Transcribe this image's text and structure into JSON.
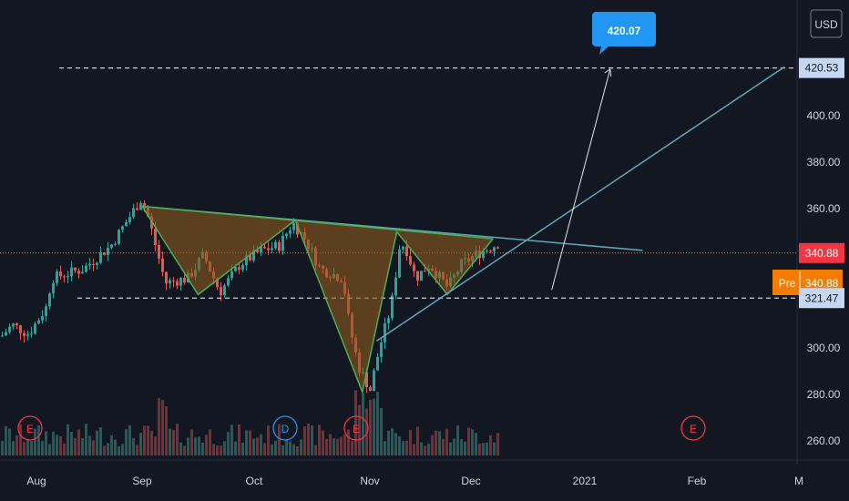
{
  "chart_data": {
    "type": "candlestick",
    "currency": "USD",
    "x_ticks": [
      "Aug",
      "Sep",
      "Oct",
      "Nov",
      "Dec",
      "2021",
      "Feb",
      "M"
    ],
    "y_ticks": [
      "260.00",
      "280.00",
      "300.00",
      "320.00",
      "340.00",
      "360.00",
      "380.00",
      "400.00"
    ],
    "ylim": [
      255,
      428
    ],
    "target_label": "420.07",
    "price_labels": {
      "target": "420.53",
      "last": "340.88",
      "pre_tag": "Pre",
      "pre_value": "340.88",
      "support": "321.47"
    },
    "levels": {
      "target": 420.53,
      "last": 340.88,
      "support": 321.47
    },
    "earnings_markers": [
      "E",
      "D",
      "E",
      "E"
    ],
    "pattern_points": [
      {
        "date": "2020-09-01",
        "value": 361
      },
      {
        "date": "2020-09-16",
        "value": 323
      },
      {
        "date": "2020-10-12",
        "value": 355
      },
      {
        "date": "2020-10-30",
        "value": 281
      },
      {
        "date": "2020-11-09",
        "value": 350
      },
      {
        "date": "2020-11-24",
        "value": 323
      },
      {
        "date": "2020-12-07",
        "value": 347
      }
    ],
    "neckline": [
      {
        "date": "2020-09-01",
        "value": 361
      },
      {
        "date": "2021-01-17",
        "value": 342
      }
    ],
    "ascending_trendline": [
      {
        "date": "2020-11-03",
        "value": 303
      },
      {
        "date": "2021-02-25",
        "value": 421
      }
    ],
    "projection_arrow": [
      {
        "date": "2020-12-23",
        "value": 325
      },
      {
        "date": "2021-01-08",
        "value": 420
      }
    ],
    "colors": {
      "background": "#131722",
      "up": "#26a69a",
      "down": "#ef5350",
      "pattern": "#4caf50",
      "trendline": "#5fa8b8",
      "label_blue": "#2196f3",
      "pre_orange": "#f57c00",
      "last_red": "#f23645",
      "level_line": "#c9d2e3"
    }
  }
}
